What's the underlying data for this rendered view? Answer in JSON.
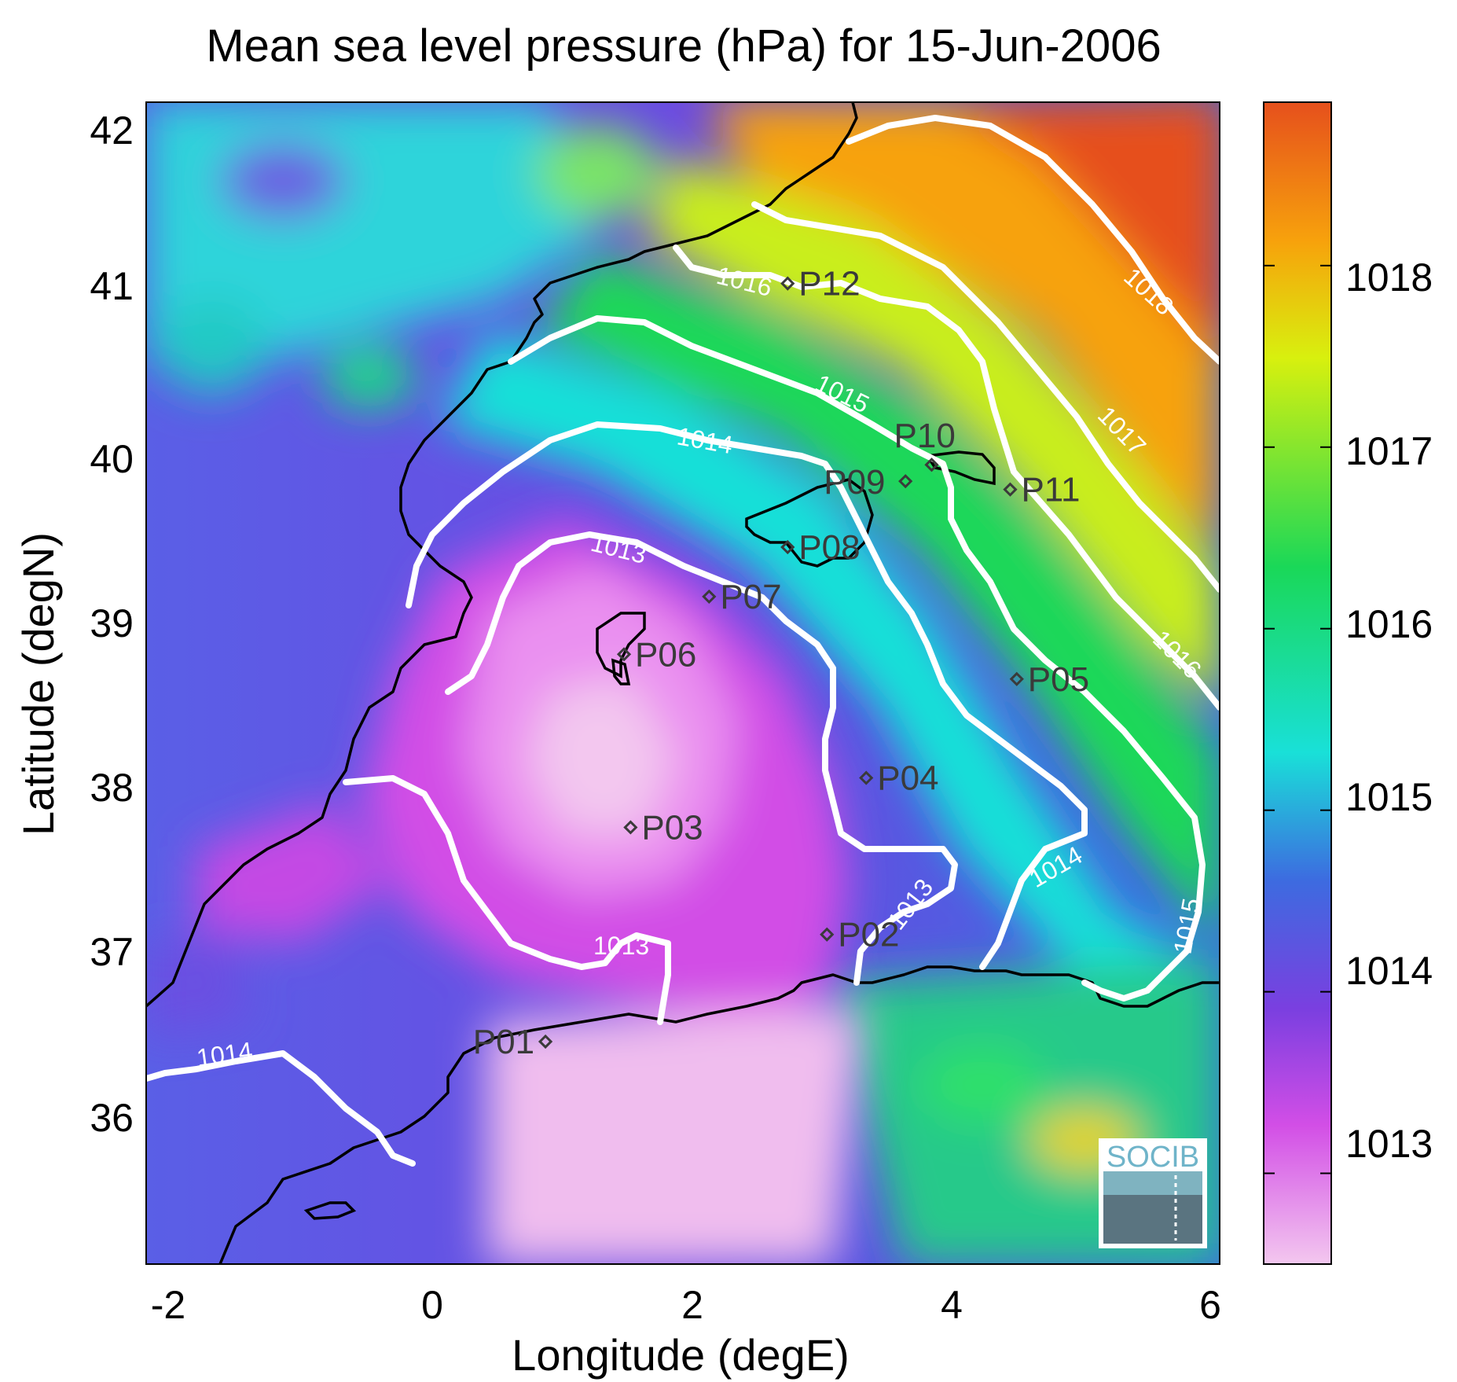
{
  "title": "Mean sea level pressure (hPa) for 15-Jun-2006",
  "xlabel": "Longitude (degE)",
  "ylabel": "Latitude (degN)",
  "x_ticks": [
    "-2",
    "0",
    "2",
    "4",
    "6"
  ],
  "y_ticks": [
    "42",
    "41",
    "40",
    "39",
    "38",
    "37",
    "36"
  ],
  "colorbar_ticks": [
    "1018",
    "1017",
    "1016",
    "1015",
    "1014",
    "1013"
  ],
  "colorbar_range": [
    1012.5,
    1018.9
  ],
  "logo_text": "SOCIB",
  "contour_labels": [
    "1018",
    "1017",
    "1016",
    "1016",
    "1015",
    "1015",
    "1014",
    "1014",
    "1014",
    "1013",
    "1013",
    "1013"
  ],
  "stations": [
    {
      "id": "P01",
      "lon": 0.85,
      "lat": 36.5
    },
    {
      "id": "P02",
      "lon": 3.0,
      "lat": 37.15
    },
    {
      "id": "P03",
      "lon": 1.5,
      "lat": 37.8
    },
    {
      "id": "P04",
      "lon": 3.3,
      "lat": 38.1
    },
    {
      "id": "P05",
      "lon": 4.45,
      "lat": 38.7
    },
    {
      "id": "P06",
      "lon": 1.45,
      "lat": 38.85
    },
    {
      "id": "P07",
      "lon": 2.1,
      "lat": 39.2
    },
    {
      "id": "P08",
      "lon": 2.7,
      "lat": 39.5
    },
    {
      "id": "P09",
      "lon": 3.6,
      "lat": 39.9
    },
    {
      "id": "P10",
      "lon": 3.8,
      "lat": 40.0
    },
    {
      "id": "P11",
      "lon": 4.4,
      "lat": 39.85
    },
    {
      "id": "P12",
      "lon": 2.7,
      "lat": 41.1
    }
  ],
  "colors": {
    "colormap": [
      "#f3c7ef",
      "#d24ee6",
      "#7a3fe0",
      "#3d6be0",
      "#19e0d8",
      "#1ad858",
      "#d8f00e",
      "#f7a20c",
      "#e6501c"
    ],
    "contour": "#ffffff",
    "coast": "#000000"
  }
}
